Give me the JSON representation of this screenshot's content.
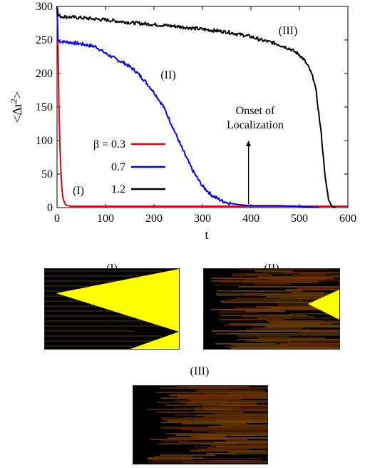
{
  "chart_data": {
    "type": "line",
    "xlabel": "t",
    "ylabel": "<Δr²>",
    "ylabel_base": "<Δr",
    "ylabel_sup": "2",
    "ylabel_end": ">",
    "xlim": [
      0,
      600
    ],
    "ylim": [
      0,
      300
    ],
    "xticks": [
      "0",
      "100",
      "200",
      "300",
      "400",
      "500",
      "600"
    ],
    "yticks": [
      "0",
      "50",
      "100",
      "150",
      "200",
      "250",
      "300"
    ],
    "legend_title": "β = 0.3",
    "series": [
      {
        "name": "β = 0.3",
        "color": "#e8000b",
        "x": [
          0,
          2,
          4,
          6,
          8,
          10,
          12,
          15,
          18,
          22,
          28,
          40,
          600
        ],
        "y": [
          300,
          240,
          150,
          90,
          55,
          30,
          15,
          8,
          4,
          3,
          2,
          2,
          2
        ]
      },
      {
        "name": "0.7",
        "color": "#0000ff",
        "x": [
          0,
          2,
          5,
          20,
          50,
          80,
          100,
          120,
          140,
          160,
          180,
          200,
          220,
          240,
          260,
          280,
          300,
          320,
          340,
          360,
          380,
          395,
          410,
          450,
          500,
          530,
          540
        ],
        "y": [
          300,
          250,
          248,
          247,
          244,
          240,
          230,
          222,
          215,
          205,
          190,
          172,
          150,
          118,
          85,
          55,
          32,
          18,
          10,
          6,
          4,
          3,
          3,
          3,
          2,
          1,
          0
        ]
      },
      {
        "name": "1.2",
        "color": "#000000",
        "x": [
          0,
          3,
          10,
          50,
          100,
          150,
          200,
          250,
          300,
          350,
          400,
          420,
          450,
          480,
          500,
          510,
          520,
          530,
          535,
          540,
          545,
          550,
          555,
          560,
          565,
          570,
          575
        ],
        "y": [
          300,
          286,
          285,
          283,
          280,
          276,
          273,
          270,
          266,
          262,
          255,
          250,
          245,
          237,
          228,
          220,
          208,
          190,
          170,
          140,
          110,
          70,
          35,
          12,
          4,
          1,
          0
        ]
      }
    ],
    "annotations": {
      "onset_line1": "Onset of",
      "onset_line2": "Localization",
      "arrow_x": 395,
      "arrow_y_from": 5,
      "arrow_y_to": 100,
      "label_I": "(I)",
      "label_II": "(II)",
      "label_III": "(III)"
    },
    "legend": [
      {
        "label": "β = 0.3",
        "color": "#e8000b"
      },
      {
        "label": "0.7",
        "color": "#0000ff"
      },
      {
        "label": "1.2",
        "color": "#000000"
      }
    ]
  },
  "panels": [
    {
      "label": "(I)"
    },
    {
      "label": "(II)"
    },
    {
      "label": "(III)"
    }
  ]
}
